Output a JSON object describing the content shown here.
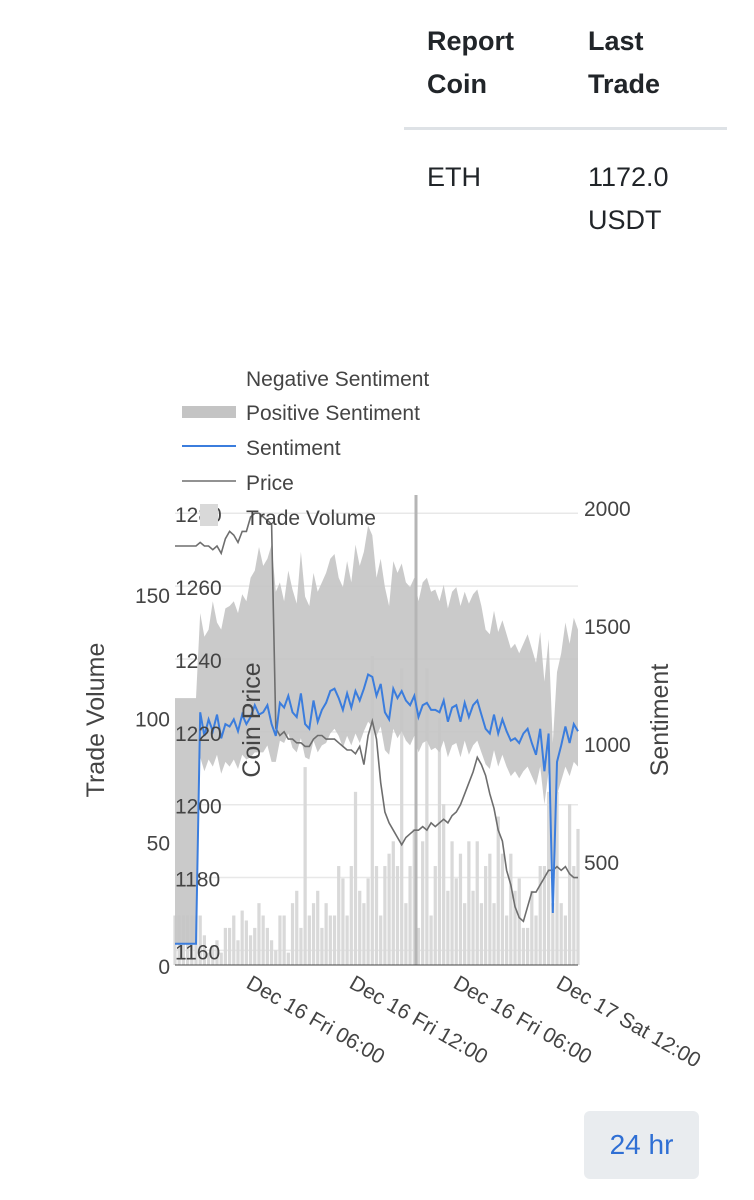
{
  "table": {
    "headers": [
      "Report Coin",
      "Last Trade"
    ],
    "rows": [
      {
        "coin": "ETH",
        "last_trade": "1172.0 USDT"
      }
    ]
  },
  "controls": {
    "range_label": "24 hr"
  },
  "colors": {
    "sentiment": "#3b7ddd",
    "price": "#6e6e6e",
    "band": "#c4c4c4",
    "volume": "#d9d9d9",
    "grid": "#e8e8e8"
  },
  "chart_data": {
    "type": "line",
    "legend": [
      "Negative Sentiment",
      "Positive Sentiment",
      "Sentiment",
      "Price",
      "Trade Volume"
    ],
    "legend_position": "top-left",
    "grid": true,
    "axes": {
      "volume": {
        "label": "Trade Volume",
        "range": [
          0,
          190
        ],
        "ticks": [
          0,
          50,
          100,
          150
        ]
      },
      "price": {
        "label": "Coin Price",
        "range": [
          1156,
          1285
        ],
        "ticks": [
          1160,
          1180,
          1200,
          1220,
          1240,
          1260,
          1280
        ]
      },
      "sentiment": {
        "label": "Sentiment",
        "range": [
          60,
          2050
        ],
        "ticks": [
          500,
          1000,
          1500,
          2000
        ]
      },
      "x_ticks": [
        "Dec 16 Fri 06:00",
        "Dec 16 Fri 12:00",
        "Dec 16 Fri 06:00",
        "Dec 17 Sat 12:00"
      ]
    },
    "x": [
      0,
      1,
      2,
      3,
      4,
      5,
      6,
      7,
      8,
      9,
      10,
      11,
      12,
      13,
      14,
      15,
      16,
      17,
      18,
      19,
      20,
      21,
      22,
      23,
      24,
      25,
      26,
      27,
      28,
      29,
      30,
      31,
      32,
      33,
      34,
      35,
      36,
      37,
      38,
      39,
      40,
      41,
      42,
      43,
      44,
      45,
      46,
      47,
      48,
      49,
      50,
      51,
      52,
      53,
      54,
      55,
      56,
      57,
      58,
      59,
      60,
      61,
      62,
      63,
      64,
      65,
      66,
      67,
      68,
      69,
      70,
      71,
      72,
      73,
      74,
      75,
      76,
      77,
      78,
      79,
      80,
      81,
      82,
      83,
      84,
      85,
      86,
      87,
      88,
      89,
      90,
      91,
      92,
      93,
      94,
      95,
      96
    ],
    "price": [
      1271,
      1271,
      1271,
      1271,
      1271,
      1271,
      1272,
      1271,
      1271,
      1270,
      1271,
      1269,
      1273,
      1275,
      1274,
      1272,
      1275,
      1275,
      1279,
      1280,
      1280,
      1279,
      1278,
      1277,
      1221,
      1219,
      1220,
      1218,
      1218,
      1217,
      1217,
      1216,
      1216,
      1218,
      1219,
      1219,
      1218,
      1218,
      1218,
      1217,
      1216,
      1215,
      1215,
      1214,
      1216,
      1211,
      1219,
      1223,
      1218,
      1206,
      1198,
      1195,
      1193,
      1191,
      1189,
      1191,
      1192,
      1193,
      1193,
      1194,
      1193,
      1195,
      1194,
      1195,
      1196,
      1195,
      1197,
      1198,
      1200,
      1203,
      1206,
      1209,
      1213,
      1211,
      1208,
      1203,
      1199,
      1193,
      1190,
      1182,
      1178,
      1172,
      1169,
      1168,
      1172,
      1176,
      1176,
      1178,
      1180,
      1182,
      1182,
      1183,
      1182,
      1183,
      1181,
      1180,
      1180
    ],
    "sentiment": [
      150,
      150,
      150,
      150,
      150,
      150,
      1130,
      1030,
      1100,
      1050,
      1120,
      1020,
      1080,
      1070,
      1100,
      1050,
      1120,
      1080,
      1110,
      1160,
      1120,
      1130,
      1160,
      1080,
      1030,
      1170,
      1150,
      1200,
      1130,
      1110,
      1210,
      1080,
      1060,
      1180,
      1090,
      1140,
      1170,
      1220,
      1230,
      1190,
      1140,
      1210,
      1150,
      1220,
      1180,
      1230,
      1290,
      1280,
      1200,
      1250,
      1130,
      1100,
      1230,
      1190,
      1220,
      1180,
      1160,
      1200,
      1110,
      1160,
      1170,
      1140,
      1140,
      1130,
      1180,
      1090,
      1150,
      1160,
      1090,
      1170,
      1110,
      1160,
      1180,
      1120,
      1060,
      1040,
      1120,
      1040,
      1100,
      1050,
      1010,
      1020,
      1000,
      1040,
      1060,
      1000,
      950,
      1060,
      880,
      1040,
      280,
      920,
      990,
      1070,
      1000,
      1080,
      1050
    ],
    "positive": [
      1190,
      1190,
      1190,
      1190,
      1190,
      1190,
      1550,
      1450,
      1480,
      1600,
      1510,
      1480,
      1570,
      1580,
      1600,
      1550,
      1630,
      1600,
      1700,
      1730,
      1830,
      1750,
      1780,
      1840,
      1640,
      1680,
      1600,
      1730,
      1650,
      1590,
      1810,
      1620,
      1580,
      1720,
      1640,
      1680,
      1720,
      1780,
      1800,
      1700,
      1660,
      1770,
      1680,
      1840,
      1750,
      1810,
      1920,
      1880,
      1700,
      1780,
      1660,
      1580,
      1770,
      1720,
      1760,
      1680,
      1660,
      1700,
      1600,
      1680,
      1700,
      1640,
      1650,
      1600,
      1670,
      1570,
      1640,
      1660,
      1580,
      1640,
      1590,
      1630,
      1650,
      1580,
      1480,
      1460,
      1560,
      1470,
      1520,
      1460,
      1400,
      1420,
      1380,
      1420,
      1460,
      1400,
      1340,
      1470,
      1260,
      1440,
      1000,
      1300,
      1380,
      1510,
      1420,
      1530,
      1480
    ],
    "negative": [
      150,
      150,
      150,
      150,
      150,
      150,
      940,
      880,
      930,
      900,
      950,
      870,
      920,
      900,
      930,
      890,
      950,
      930,
      940,
      960,
      960,
      960,
      990,
      920,
      920,
      1010,
      1000,
      1040,
      980,
      960,
      1020,
      940,
      930,
      1010,
      960,
      990,
      1000,
      1040,
      1060,
      1030,
      980,
      1030,
      990,
      1040,
      1000,
      1050,
      1090,
      1070,
      1030,
      1070,
      970,
      950,
      1060,
      1020,
      1050,
      1010,
      990,
      1030,
      960,
      1000,
      1010,
      970,
      980,
      960,
      1010,
      940,
      990,
      1000,
      940,
      1010,
      950,
      990,
      1010,
      960,
      910,
      890,
      970,
      900,
      950,
      900,
      860,
      880,
      850,
      880,
      900,
      860,
      820,
      900,
      740,
      880,
      280,
      780,
      840,
      900,
      860,
      920,
      900
    ],
    "volume": [
      20,
      20,
      20,
      20,
      20,
      20,
      20,
      12,
      5,
      8,
      10,
      5,
      15,
      15,
      20,
      10,
      22,
      18,
      12,
      15,
      25,
      20,
      15,
      10,
      6,
      20,
      20,
      5,
      25,
      30,
      15,
      80,
      20,
      25,
      30,
      15,
      25,
      20,
      20,
      40,
      35,
      20,
      40,
      70,
      30,
      25,
      35,
      125,
      40,
      20,
      40,
      45,
      50,
      40,
      120,
      25,
      40,
      55,
      15,
      50,
      120,
      20,
      40,
      100,
      65,
      30,
      50,
      35,
      45,
      25,
      50,
      30,
      50,
      25,
      40,
      45,
      25,
      60,
      45,
      20,
      45,
      30,
      35,
      15,
      15,
      30,
      20,
      40,
      40,
      70,
      25,
      70,
      25,
      20,
      65,
      40,
      55
    ]
  }
}
